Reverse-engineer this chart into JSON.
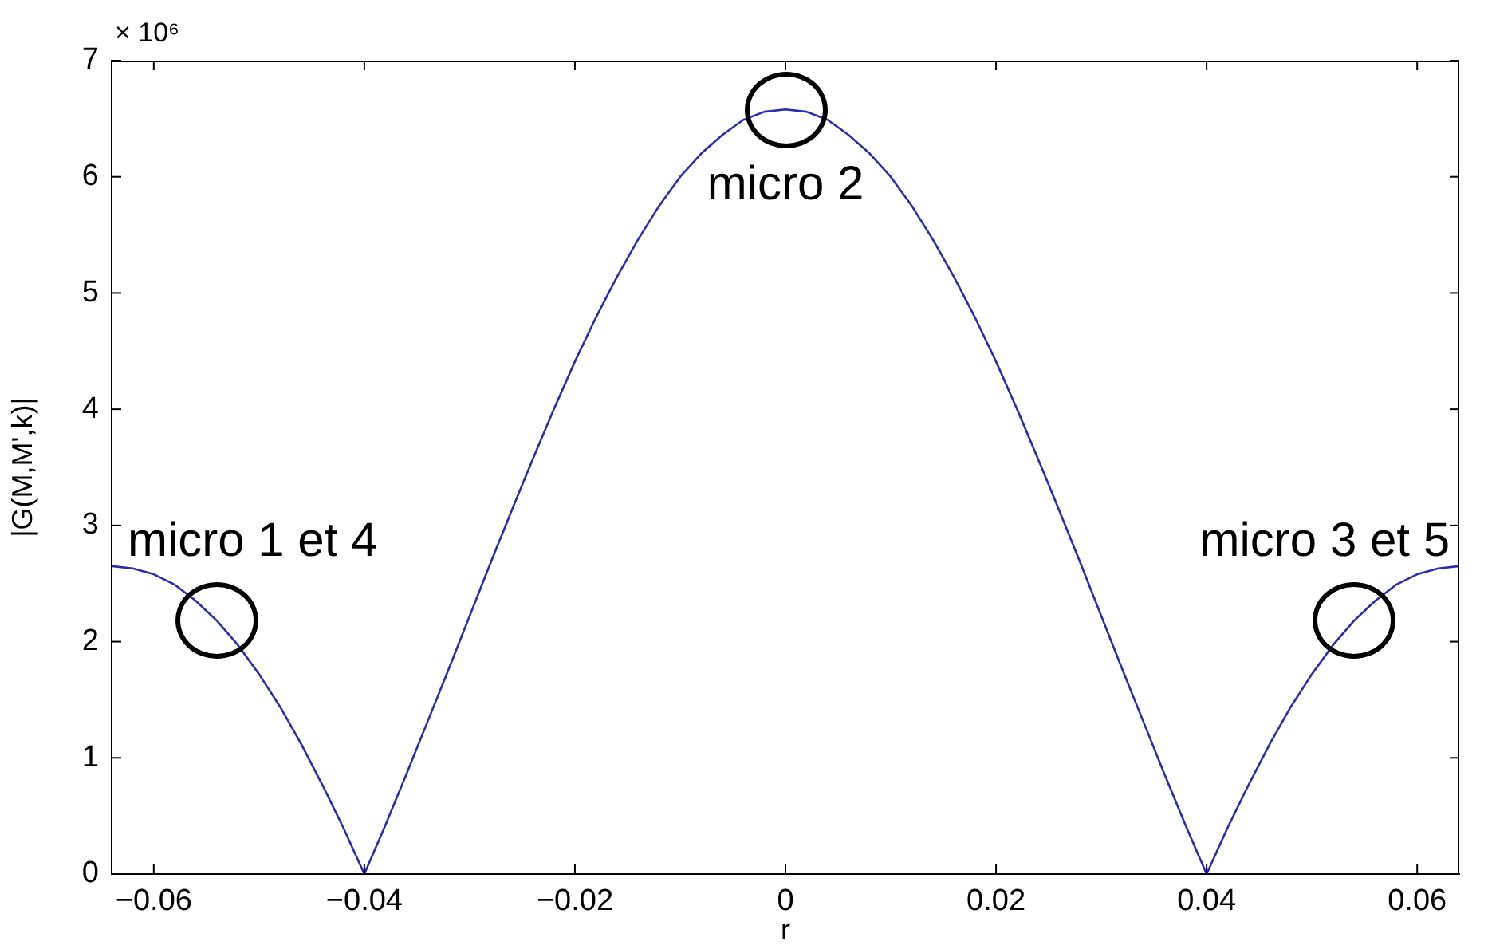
{
  "chart_data": {
    "type": "line",
    "xlabel": "r",
    "ylabel": "|G(M,M',k)|",
    "x": [
      -0.064,
      -0.062,
      -0.06,
      -0.058,
      -0.056,
      -0.054,
      -0.052,
      -0.05,
      -0.048,
      -0.046,
      -0.044,
      -0.042,
      -0.04,
      -0.038,
      -0.036,
      -0.034,
      -0.032,
      -0.03,
      -0.028,
      -0.026,
      -0.024,
      -0.022,
      -0.02,
      -0.018,
      -0.016,
      -0.014,
      -0.012,
      -0.01,
      -0.008,
      -0.006,
      -0.004,
      -0.002,
      0,
      0.002,
      0.004,
      0.006,
      0.008,
      0.01,
      0.012,
      0.014,
      0.016,
      0.018,
      0.02,
      0.022,
      0.024,
      0.026,
      0.028,
      0.03,
      0.032,
      0.034,
      0.036,
      0.038,
      0.04,
      0.042,
      0.044,
      0.046,
      0.048,
      0.05,
      0.052,
      0.054,
      0.056,
      0.058,
      0.06,
      0.062,
      0.064
    ],
    "series": [
      {
        "color": "#2b2bb0",
        "values": [
          2.65,
          2.63,
          2.58,
          2.49,
          2.35,
          2.18,
          1.97,
          1.72,
          1.44,
          1.12,
          0.77,
          0.4,
          0,
          0.42,
          0.86,
          1.31,
          1.76,
          2.22,
          2.68,
          3.13,
          3.57,
          4,
          4.41,
          4.79,
          5.14,
          5.46,
          5.75,
          6,
          6.2,
          6.36,
          6.49,
          6.56,
          6.58,
          6.56,
          6.49,
          6.36,
          6.2,
          6,
          5.75,
          5.46,
          5.14,
          4.79,
          4.41,
          4,
          3.57,
          3.13,
          2.68,
          2.22,
          1.76,
          1.31,
          0.86,
          0.42,
          0,
          0.4,
          0.77,
          1.12,
          1.44,
          1.72,
          1.97,
          2.18,
          2.35,
          2.49,
          2.58,
          2.63,
          2.65
        ]
      }
    ],
    "xlim": [
      -0.064,
      0.064
    ],
    "xticks": [
      -0.06,
      -0.04,
      -0.02,
      0,
      0.02,
      0.04,
      0.06
    ],
    "ylim": [
      0,
      7
    ],
    "yticks": [
      0,
      1,
      2,
      3,
      4,
      5,
      6,
      7
    ],
    "annotations": [
      "× 10⁶",
      {
        "text": "micro 1 et 4",
        "x": -0.054,
        "y": 2.18
      },
      {
        "text": "micro 2",
        "x": 0,
        "y": 6.58
      },
      {
        "text": "micro 3 et 5",
        "x": 0.054,
        "y": 2.18
      }
    ]
  }
}
